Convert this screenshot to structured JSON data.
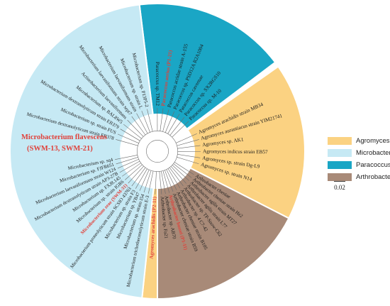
{
  "colors": {
    "microbacterium": "#c6e9f4",
    "paracoccus": "#1aa6c5",
    "agromyces": "#fbd282",
    "arthrobacter": "#a88a78",
    "highlight_label": "#e0413a",
    "highlight_bg": "#f2b8b2",
    "branch": "#6a6a6a"
  },
  "legend": {
    "items": [
      {
        "label": "Agromyces",
        "color": "#fbd282"
      },
      {
        "label": "Microbacterium",
        "color": "#c6e9f4"
      },
      {
        "label": "Paracoccus",
        "color": "#1aa6c5"
      },
      {
        "label": "Arthrobacter",
        "color": "#a88a78"
      }
    ]
  },
  "scale_bar": {
    "label": "0.02"
  },
  "paracoccus_leaves": [
    {
      "text": "Paracoccus sp. TM12"
    },
    {
      "text": "Paracoccus aerius (P1-21)",
      "highlight": true
    },
    {
      "text": "Paracoccus acridae strain A-155"
    },
    {
      "text": "Paracoccus sp. PSD12A R2A1004"
    },
    {
      "text": "Paracoccus cavernae"
    },
    {
      "text": "Paracoccus sp. SX2RGS10"
    },
    {
      "text": "Paracoccus sp. M-10"
    }
  ],
  "agromyces_leaves": [
    {
      "text": "Agromyces arachidis strain MB34"
    },
    {
      "text": "Agromyces aurantiacus strain YIM21741"
    },
    {
      "text": "Agromyces sp. AK1"
    },
    {
      "text": "Agromyces indicus strain EB57"
    },
    {
      "text": "Agromyces sp. strain Dg-L9"
    },
    {
      "text": "Agromyces sp. strain N14"
    }
  ],
  "arthrobacter_leaves": [
    {
      "text": "Arthrobacter cheniae"
    },
    {
      "text": "Arthrobacter cheniae strain Hz2"
    },
    {
      "text": "Arthrobacter agilis strain MT27"
    },
    {
      "text": "Arthrobacter agilis strain L77"
    },
    {
      "text": "Arthrobacter sp. TP-Snow-C62"
    },
    {
      "text": "Arthrobacter sp. 4 C7-42"
    },
    {
      "text": "Arthrobacter cheniae strain B105"
    },
    {
      "text": "Arthrobacter cheniae strain B59"
    },
    {
      "text": "Arthrobacter bussei (P1-11)",
      "highlight": true
    },
    {
      "text": "Arthrobacter sp. AB70"
    },
    {
      "text": "Arthrobacter sp. Fa21"
    }
  ],
  "agromyces_arachidis_leaf": {
    "text": "Agromyces arachidis (P2-11)",
    "highlight": true
  },
  "microbacterium_leaves": [
    {
      "text": "Microbacterium trichothecenolyticum strain E-3"
    },
    {
      "text": "Microbacterium sp. strain I54"
    },
    {
      "text": "Microbacterium sp. YB47"
    },
    {
      "text": "Microbacterium sp. strain F3"
    },
    {
      "text": "Microbacterium proteolyticum strain SCSIO 43763"
    },
    {
      "text": "Microbacterium zeae (SWM-31)",
      "highlight": true
    },
    {
      "text": "Microbacterium sp. strain IGR6"
    },
    {
      "text": "Microbacterium sp. FXJ8.145"
    },
    {
      "text": "Microbacterium dextranolyticum strain AP3-27B"
    },
    {
      "text": "Microbacterium laevaniformans strain W124"
    },
    {
      "text": "Microbacterium sp. FJFR651"
    },
    {
      "text": "Microbacterium sp. sq4"
    },
    {
      "text": "Microbacterium dextranolyticum strain EB378"
    },
    {
      "text": "Microbacterium sp. strain FUS"
    },
    {
      "text": "Microbacterium dextranolyticum strain EB379"
    },
    {
      "text": "Microbacterium sp. BAL8W5"
    },
    {
      "text": "Actinobacterium laevaniformans"
    },
    {
      "text": "Microbacterium laevaniformans strain sept7"
    },
    {
      "text": "Microbacterium laevaniformans strain"
    },
    {
      "text": "Microbacterium sp. strain L"
    },
    {
      "text": "Microbacterium sp. P13P5-2"
    }
  ],
  "microbacterium_flavescens": {
    "line1": "Microbacterium flavescens",
    "line2": "(SWM-13, SWM-21)"
  }
}
